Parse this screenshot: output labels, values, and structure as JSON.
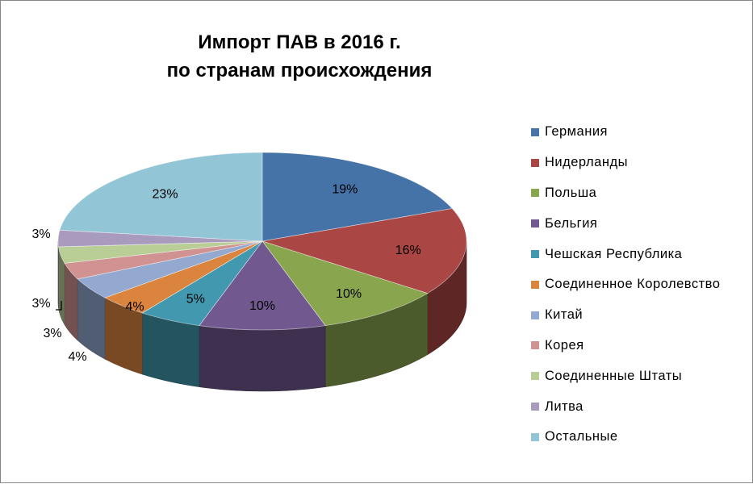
{
  "chart_data": {
    "type": "pie",
    "title": "Импорт ПАВ в 2016 г.",
    "subtitle": "по странам происхождения",
    "three_d": true,
    "legend_position": "right",
    "series": [
      {
        "name": "Германия",
        "value": 19,
        "label": "19%",
        "color": "#4572A7"
      },
      {
        "name": "Нидерланды",
        "value": 16,
        "label": "16%",
        "color": "#AA4643"
      },
      {
        "name": "Польша",
        "value": 10,
        "label": "10%",
        "color": "#89A54E"
      },
      {
        "name": "Бельгия",
        "value": 10,
        "label": "10%",
        "color": "#71588F"
      },
      {
        "name": "Чешская Республика",
        "value": 5,
        "label": "5%",
        "color": "#4198AF"
      },
      {
        "name": "Соединенное Королевство",
        "value": 4,
        "label": "4%",
        "color": "#DB843D"
      },
      {
        "name": "Китай",
        "value": 4,
        "label": "4%",
        "color": "#93A9CF"
      },
      {
        "name": "Корея",
        "value": 3,
        "label": "3%",
        "color": "#D19392"
      },
      {
        "name": "Соединенные Штаты",
        "value": 3,
        "label": "3%",
        "color": "#B9CD96"
      },
      {
        "name": "Литва",
        "value": 3,
        "label": "3%",
        "color": "#A99BBD"
      },
      {
        "name": "Остальные",
        "value": 23,
        "label": "23%",
        "color": "#92C5D6"
      }
    ]
  }
}
